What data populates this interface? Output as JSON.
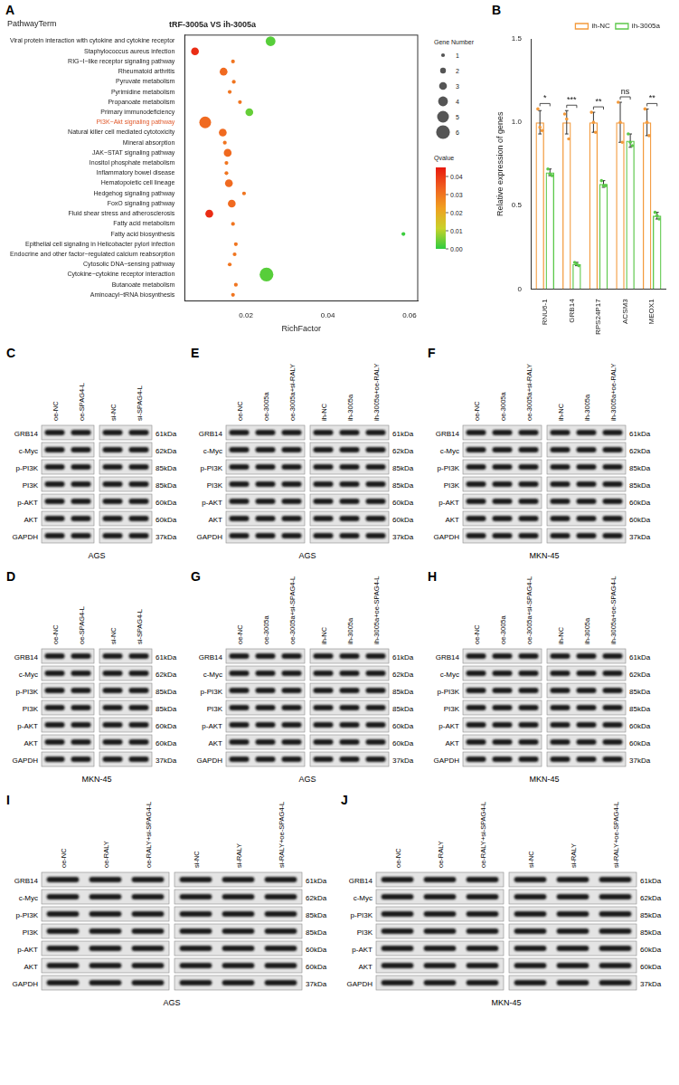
{
  "chart_data": [
    {
      "panel": "A",
      "type": "bubble",
      "title": "tRF-3005a VS ih-3005a",
      "y_label": "PathwayTerm",
      "x_label": "RichFactor",
      "categories": [
        "Viral protein interaction with cytokine and cytokine receptor",
        "Staphylococcus aureus infection",
        "RIG−I−like receptor signaling pathway",
        "Rheumatoid arthritis",
        "Pyruvate metabolism",
        "Pyrimidine metabolism",
        "Propanoate metabolism",
        "Primary immunodeficiency",
        "PI3K−Akt signaling pathway",
        "Natural killer cell mediated cytotoxicity",
        "Mineral absorption",
        "JAK−STAT signaling pathway",
        "Inositol phosphate metabolism",
        "Inflammatory bowel disease",
        "Hematopoietic cell lineage",
        "Hedgehog signaling pathway",
        "FoxO signaling pathway",
        "Fluid shear stress and atherosclerosis",
        "Fatty acid metabolism",
        "Fatty acid biosynthesis",
        "Epithelial cell signaling in Helicobacter pylori infection",
        "Endocrine and other factor−regulated calcium reabsorption",
        "Cytosolic DNA−sensing pathway",
        "Cytokine−cytokine receptor interaction",
        "Butanoate metabolism",
        "Aminoacyl−tRNA biosynthesis"
      ],
      "rich_factor": [
        0.026,
        0.0075,
        0.0168,
        0.0145,
        0.017,
        0.016,
        0.0185,
        0.0208,
        0.01,
        0.0143,
        0.0148,
        0.0155,
        0.0152,
        0.0152,
        0.0158,
        0.0195,
        0.0165,
        0.011,
        0.0168,
        0.0585,
        0.0175,
        0.0172,
        0.016,
        0.025,
        0.0175,
        0.0168
      ],
      "gene_number": [
        4,
        3,
        1,
        3,
        1,
        1,
        1,
        3,
        5,
        3,
        1,
        3,
        1,
        1,
        3,
        1,
        3,
        3,
        1,
        1,
        1,
        1,
        1,
        6,
        1,
        1
      ],
      "qvalue": [
        0.003,
        0.042,
        0.03,
        0.032,
        0.03,
        0.03,
        0.03,
        0.004,
        0.032,
        0.032,
        0.03,
        0.032,
        0.03,
        0.03,
        0.032,
        0.03,
        0.032,
        0.042,
        0.03,
        0.001,
        0.03,
        0.03,
        0.03,
        0.003,
        0.03,
        0.03
      ],
      "xlim": [
        0.005,
        0.062
      ],
      "xticks": [
        0.02,
        0.04,
        0.06
      ],
      "grid": false,
      "highlight": {
        "category": "PI3K−Akt signaling pathway",
        "color": "#e0582a"
      },
      "size_legend": {
        "title": "Gene Number",
        "values": [
          1,
          2,
          3,
          4,
          5,
          6
        ]
      },
      "colorbar": {
        "title": "Qvalue",
        "range": [
          0,
          0.045
        ],
        "ticks": [
          {
            "value": 0.04,
            "label": "0.04"
          },
          {
            "value": 0.03,
            "label": "0.03"
          },
          {
            "value": 0.02,
            "label": "0.02"
          },
          {
            "value": 0.01,
            "label": "0.01"
          },
          {
            "value": 0,
            "label": "0.00"
          }
        ],
        "colors": [
          "#2ecc40",
          "#c8d22a",
          "#f0a020",
          "#f06020",
          "#e8190f"
        ]
      }
    },
    {
      "panel": "B",
      "type": "bar",
      "y_label": "Relative expression of genes",
      "categories": [
        "RNU6-1",
        "GRB14",
        "RPS24P17",
        "ACSM3",
        "MEOX1"
      ],
      "series": [
        {
          "name": "ih-NC",
          "color": "#f39a3c",
          "values": [
            1.0,
            1.0,
            1.0,
            1.0,
            1.0
          ],
          "errors": [
            0.07,
            0.07,
            0.06,
            0.12,
            0.08
          ],
          "points": [
            [
              1.08,
              0.97,
              0.95
            ],
            [
              1.05,
              1.02,
              0.9
            ],
            [
              1.06,
              1.0,
              0.94
            ],
            [
              1.12,
              1.0,
              0.88
            ],
            [
              1.08,
              1.0,
              0.92
            ]
          ]
        },
        {
          "name": "ih-3005a",
          "color": "#5cc84a",
          "values": [
            0.7,
            0.15,
            0.63,
            0.89,
            0.44
          ],
          "errors": [
            0.02,
            0.01,
            0.02,
            0.04,
            0.02
          ],
          "points": [
            [
              0.72,
              0.69,
              0.68
            ],
            [
              0.16,
              0.15,
              0.14
            ],
            [
              0.65,
              0.62,
              0.62
            ],
            [
              0.93,
              0.88,
              0.86
            ],
            [
              0.46,
              0.44,
              0.42
            ]
          ]
        }
      ],
      "ylim": [
        0,
        1.5
      ],
      "yticks": [
        0,
        0.5,
        {
          "value": 1,
          "label": "1.0"
        },
        1.5
      ],
      "grid": false,
      "legend": "top-right",
      "significance": [
        "*",
        "***",
        "**",
        "ns",
        "**"
      ]
    }
  ],
  "blots": {
    "proteins": [
      {
        "name": "GRB14",
        "size": "61kDa"
      },
      {
        "name": "c-Myc",
        "size": "62kDa"
      },
      {
        "name": "p-PI3K",
        "size": "85kDa"
      },
      {
        "name": "PI3K",
        "size": "85kDa"
      },
      {
        "name": "p-AKT",
        "size": "60kDa"
      },
      {
        "name": "AKT",
        "size": "60kDa"
      },
      {
        "name": "GAPDH",
        "size": "37kDa"
      }
    ],
    "panels": [
      {
        "panel": "C",
        "cell": "AGS",
        "groups": [
          [
            "oe-NC",
            "oe-SPAG4-L"
          ],
          [
            "si-NC",
            "si-SPAG4-L"
          ]
        ]
      },
      {
        "panel": "D",
        "cell": "MKN-45",
        "groups": [
          [
            "oe-NC",
            "oe-SPAG4-L"
          ],
          [
            "si-NC",
            "si-SPAG4-L"
          ]
        ]
      },
      {
        "panel": "E",
        "cell": "AGS",
        "groups": [
          [
            "oe-NC",
            "oe-3005a",
            "oe-3005a+si-RALY"
          ],
          [
            "ih-NC",
            "ih-3005a",
            "ih-3005a+oe-RALY"
          ]
        ]
      },
      {
        "panel": "F",
        "cell": "MKN-45",
        "groups": [
          [
            "oe-NC",
            "oe-3005a",
            "oe-3005a+si-RALY"
          ],
          [
            "ih-NC",
            "ih-3005a",
            "ih-3005a+oe-RALY"
          ]
        ]
      },
      {
        "panel": "G",
        "cell": "AGS",
        "groups": [
          [
            "oe-NC",
            "oe-3005a",
            "oe-3005a+si-SPAG4-L"
          ],
          [
            "ih-NC",
            "ih-3005a",
            "ih-3005a+oe-SPAG4-L"
          ]
        ]
      },
      {
        "panel": "H",
        "cell": "MKN-45",
        "groups": [
          [
            "oe-NC",
            "oe-3005a",
            "oe-3005a+si-SPAG4-L"
          ],
          [
            "ih-NC",
            "ih-3005a",
            "ih-3005a+oe-SPAG4-L"
          ]
        ]
      },
      {
        "panel": "I",
        "cell": "AGS",
        "groups": [
          [
            "oe-NC",
            "oe-RALY",
            "oe-RALY+si-SPAG4-L"
          ],
          [
            "si-NC",
            "si-RALY",
            "si-RALY+oe-SPAG4-L"
          ]
        ]
      },
      {
        "panel": "J",
        "cell": "MKN-45",
        "groups": [
          [
            "oe-NC",
            "oe-RALY",
            "oe-RALY+si-SPAG4-L"
          ],
          [
            "si-NC",
            "si-RALY",
            "si-RALY+oe-SPAG4-L"
          ]
        ]
      }
    ]
  }
}
